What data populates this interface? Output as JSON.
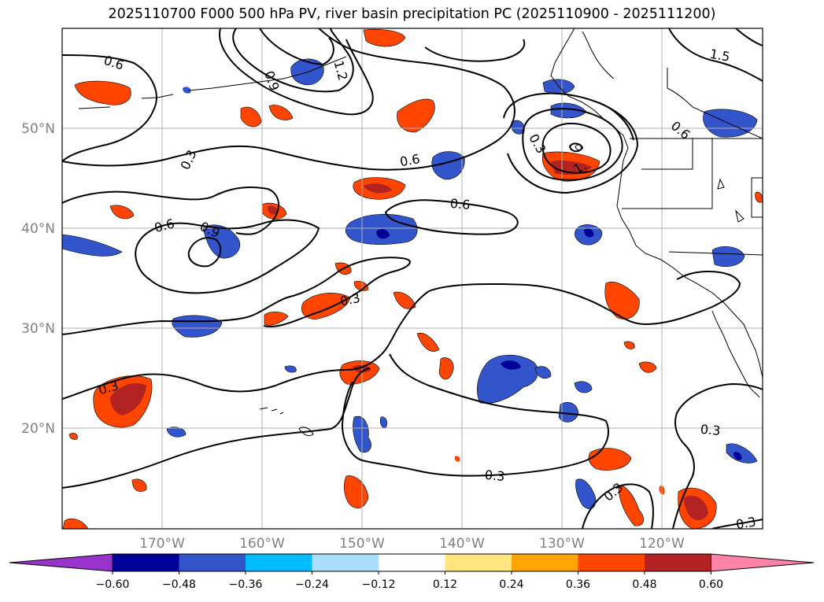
{
  "title": "2025110700 F000 500 hPa PV, river basin precipitation PC (2025110900 - 2025111200)",
  "map": {
    "lon_labels": [
      "170°W",
      "160°W",
      "150°W",
      "140°W",
      "130°W",
      "120°W"
    ],
    "lat_labels": [
      "50°N",
      "40°N",
      "30°N",
      "20°N"
    ],
    "grid": true,
    "contour_labels": [
      "0.6",
      "0.9",
      "1.2",
      "0.3",
      "0.6",
      "0.6",
      "0.6",
      "0.9",
      "0.3",
      "0.3",
      "0.3",
      "0.3",
      "0.3",
      "0.6",
      "1.5",
      "1.",
      "0.3",
      "0.3"
    ]
  },
  "colorbar": {
    "ticks": [
      "−0.60",
      "−0.48",
      "−0.36",
      "−0.24",
      "−0.12",
      "0.12",
      "0.24",
      "0.36",
      "0.48",
      "0.60"
    ],
    "colors": [
      "#9933cc",
      "#000099",
      "#3355cc",
      "#00bbff",
      "#aaddff",
      "#ffffff",
      "#ffe680",
      "#ffa500",
      "#ff4500",
      "#b22222",
      "#ff82a8"
    ]
  }
}
